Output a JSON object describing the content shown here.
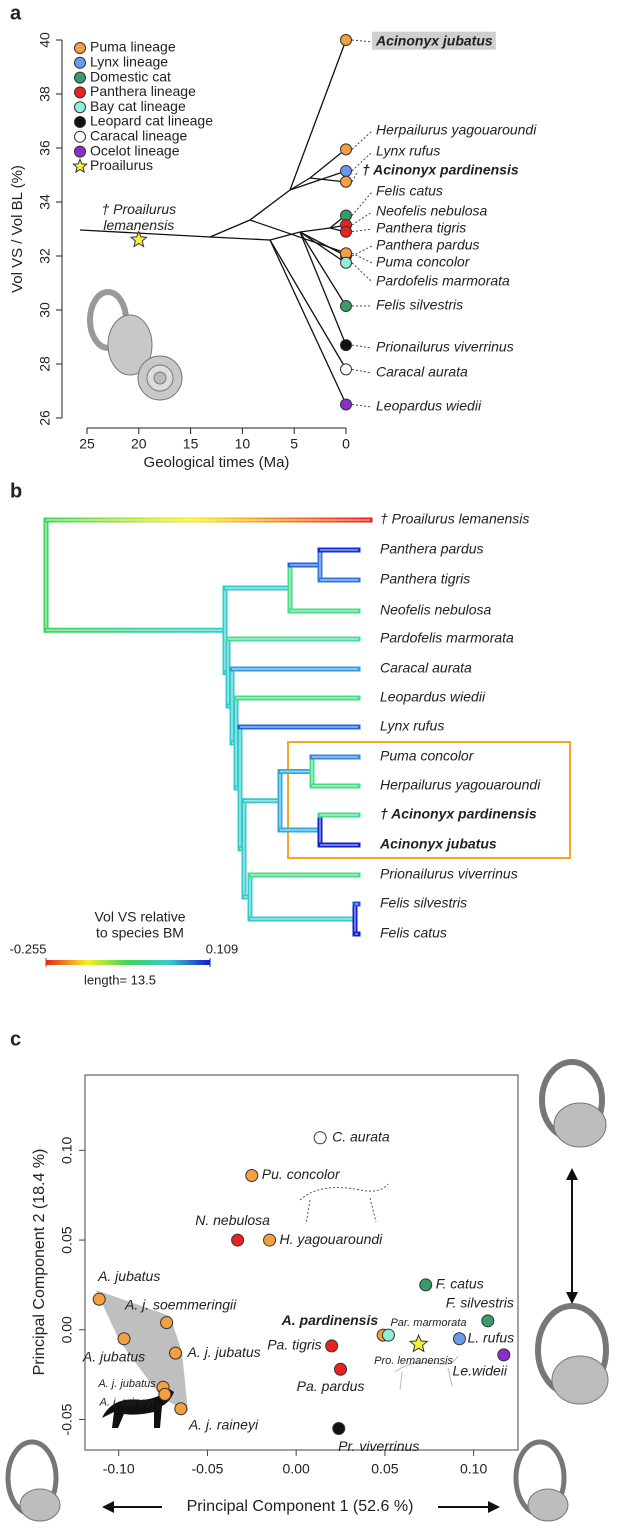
{
  "chart_data": [
    {
      "panel": "a",
      "type": "traitgram",
      "x_label": "Geological times (Ma)",
      "y_label": "Vol VS / Vol BL (%)",
      "xlim": [
        25,
        0
      ],
      "ylim": [
        26,
        40
      ],
      "xticks": [
        25,
        20,
        15,
        10,
        5,
        0
      ],
      "yticks": [
        26,
        28,
        30,
        32,
        34,
        36,
        38,
        40
      ],
      "legend": {
        "position": "upper left",
        "entries": [
          {
            "name": "Puma lineage",
            "color": "#f5a040"
          },
          {
            "name": "Lynx lineage",
            "color": "#6b9be8"
          },
          {
            "name": "Domestic cat",
            "color": "#3a9a6a"
          },
          {
            "name": "Panthera lineage",
            "color": "#e8231f"
          },
          {
            "name": "Bay cat lineage",
            "color": "#8ff0d8"
          },
          {
            "name": "Leopard cat lineage",
            "color": "#111111"
          },
          {
            "name": "Caracal lineage",
            "color": "#ffffff"
          },
          {
            "name": "Ocelot lineage",
            "color": "#8a2fc8"
          },
          {
            "name": "Proailurus",
            "color": "#f4f03c",
            "marker": "star"
          }
        ]
      },
      "points": [
        {
          "label": "Acinonyx jubatus",
          "x": 0,
          "y": 40,
          "color": "#f5a040",
          "bold": true,
          "highlight": true
        },
        {
          "label": "Herpailurus yagouaroundi",
          "x": 0,
          "y": 35.95,
          "color": "#f5a040"
        },
        {
          "label": "Lynx rufus",
          "x": 0,
          "y": 35.15,
          "color": "#6b9be8"
        },
        {
          "label": "† Acinonyx pardinensis",
          "x": 0,
          "y": 34.75,
          "color": "#f5a040",
          "bold": true
        },
        {
          "label": "Felis catus",
          "x": 0,
          "y": 33.5,
          "color": "#3a9a6a"
        },
        {
          "label": "Neofelis nebulosa",
          "x": 0,
          "y": 33.15,
          "color": "#e8231f"
        },
        {
          "label": "Panthera tigris",
          "x": 0,
          "y": 32.9,
          "color": "#e8231f"
        },
        {
          "label": "Panthera pardus",
          "x": 0,
          "y": 32.0,
          "color": "#e8231f"
        },
        {
          "label": "Puma concolor",
          "x": 0,
          "y": 32.1,
          "color": "#f5a040"
        },
        {
          "label": "Pardofelis marmorata",
          "x": 0,
          "y": 31.75,
          "color": "#8ff0d8"
        },
        {
          "label": "Felis silvestris",
          "x": 0,
          "y": 30.15,
          "color": "#3a9a6a"
        },
        {
          "label": "Prionailurus viverrinus",
          "x": 0,
          "y": 28.7,
          "color": "#111111"
        },
        {
          "label": "Caracal aurata",
          "x": 0,
          "y": 27.8,
          "color": "#ffffff"
        },
        {
          "label": "Leopardus wiedii",
          "x": 0,
          "y": 26.5,
          "color": "#8a2fc8"
        },
        {
          "label": "† Proailurus lemanensis",
          "x": 20,
          "y": 32.6,
          "color": "#f4f03c",
          "marker": "star"
        }
      ]
    },
    {
      "panel": "b",
      "type": "tree",
      "tips": [
        {
          "label": "† Proailurus lemanensis"
        },
        {
          "label": "Panthera pardus"
        },
        {
          "label": "Panthera tigris"
        },
        {
          "label": "Neofelis nebulosa"
        },
        {
          "label": "Pardofelis marmorata"
        },
        {
          "label": "Caracal aurata"
        },
        {
          "label": "Leopardus wiedii"
        },
        {
          "label": "Lynx rufus"
        },
        {
          "label": "Puma concolor"
        },
        {
          "label": "Herpailurus yagouaroundi"
        },
        {
          "label": "† Acinonyx pardinensis",
          "bold": true
        },
        {
          "label": "Acinonyx jubatus",
          "bold": true
        },
        {
          "label": "Prionailurus viverrinus"
        },
        {
          "label": "Felis silvestris"
        },
        {
          "label": "Felis catus"
        }
      ],
      "color_scale": {
        "title": [
          "Vol VS relative",
          "to species BM"
        ],
        "min": -0.255,
        "max": 0.109,
        "colors": [
          "#e8231f",
          "#f7f01e",
          "#3ed65a",
          "#33cccc",
          "#1a1acc"
        ]
      },
      "length_label": "length= 13.5"
    },
    {
      "panel": "c",
      "type": "scatter",
      "x_label": "Principal Component 1 (52.6 %)",
      "y_label": "Principal Component 2 (18.4 %)",
      "xlim": [
        -0.119,
        0.125
      ],
      "ylim": [
        -0.067,
        0.142
      ],
      "xticks": [
        {
          "value": -0.1,
          "label": "-0.10"
        },
        -0.05,
        {
          "value": 0,
          "label": "0.00"
        },
        0.05,
        {
          "value": 0.1,
          "label": "0.10"
        }
      ],
      "yticks": [
        -0.05,
        {
          "value": 0,
          "label": "0.00"
        },
        0.05,
        {
          "value": 0.1,
          "label": "0.10"
        }
      ],
      "points": [
        {
          "label": "C. aurata",
          "x": 0.0135,
          "y": 0.107,
          "color": "#ffffff"
        },
        {
          "label": "Pu. concolor",
          "x": -0.025,
          "y": 0.086,
          "color": "#f5a040"
        },
        {
          "label": "N. nebulosa",
          "x": -0.033,
          "y": 0.05,
          "color": "#e8231f"
        },
        {
          "label": "H. yagouaroundi",
          "x": -0.015,
          "y": 0.05,
          "color": "#f5a040"
        },
        {
          "label": "A. jubatus",
          "x": -0.111,
          "y": 0.017,
          "color": "#f5a040"
        },
        {
          "label": "A. j. soemmeringii",
          "x": -0.073,
          "y": 0.004,
          "color": "#f5a040"
        },
        {
          "label": "A. jubatus",
          "x": -0.097,
          "y": -0.005,
          "color": "#f5a040"
        },
        {
          "label": "A. j. jubatus",
          "x": -0.068,
          "y": -0.013,
          "color": "#f5a040"
        },
        {
          "label": "A. j. jubatus",
          "x": -0.075,
          "y": -0.032,
          "color": "#f5a040"
        },
        {
          "label": "A. j. raineyi",
          "x": -0.074,
          "y": -0.036,
          "color": "#f5a040"
        },
        {
          "label": "A. j. raineyi",
          "x": -0.065,
          "y": -0.044,
          "color": "#f5a040"
        },
        {
          "label": "Pa. tigris",
          "x": 0.02,
          "y": -0.009,
          "color": "#e8231f"
        },
        {
          "label": "Pa. pardus",
          "x": 0.025,
          "y": -0.022,
          "color": "#e8231f"
        },
        {
          "label": "Pr. viverrinus",
          "x": 0.024,
          "y": -0.055,
          "color": "#111111"
        },
        {
          "label": "A. pardinensis",
          "x": 0.049,
          "y": -0.003,
          "color": "#f5a040",
          "bold": true
        },
        {
          "label": "Par. marmorata",
          "x": 0.052,
          "y": -0.003,
          "color": "#8ff0d8"
        },
        {
          "label": "Pro. lemanensis",
          "x": 0.069,
          "y": -0.008,
          "color": "#f4f03c",
          "marker": "star"
        },
        {
          "label": "F. catus",
          "x": 0.073,
          "y": 0.025,
          "color": "#3a9a6a"
        },
        {
          "label": "F. silvestris",
          "x": 0.108,
          "y": 0.005,
          "color": "#3a9a6a"
        },
        {
          "label": "L. rufus",
          "x": 0.092,
          "y": -0.005,
          "color": "#6b9be8"
        },
        {
          "label": "Le.wideii",
          "x": 0.117,
          "y": -0.014,
          "color": "#8a2fc8"
        }
      ]
    }
  ]
}
